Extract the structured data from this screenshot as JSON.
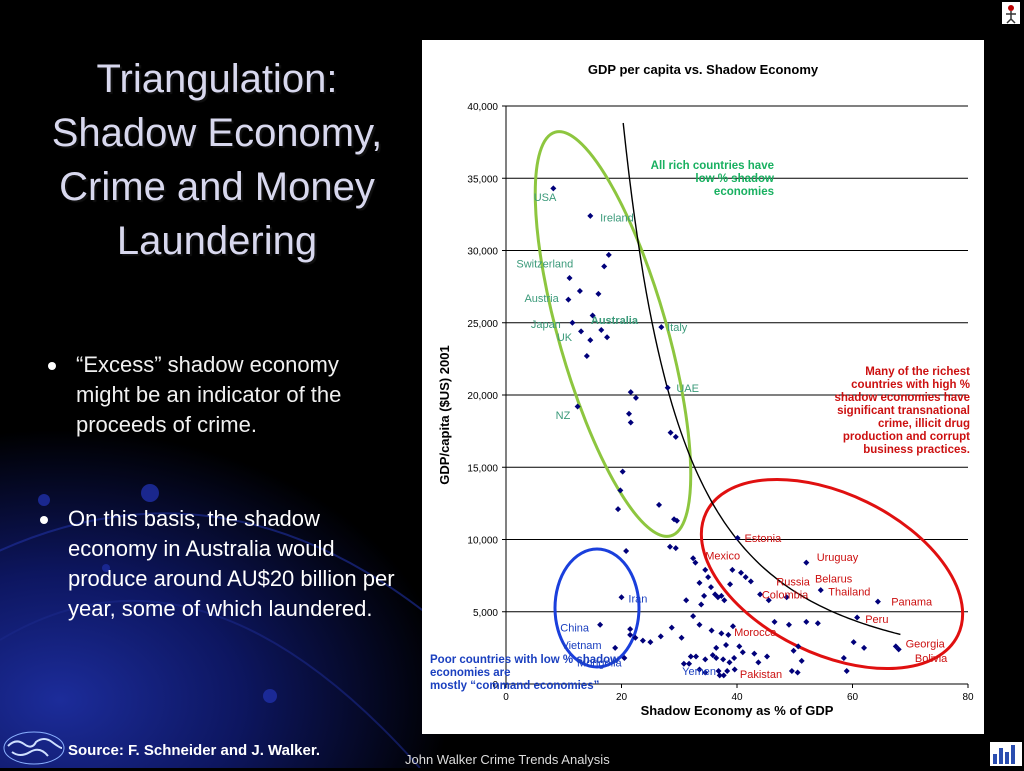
{
  "slide": {
    "title": [
      "Triangulation:",
      "Shadow Economy,",
      "Crime and Money",
      "Laundering"
    ],
    "bullets": [
      "“Excess” shadow economy might be an indicator of the proceeds of crime.",
      "On this basis, the shadow economy in Australia would produce around AU$20 billion per year, some of which laundered."
    ],
    "source": "Source: F. Schneider and J. Walker.",
    "credit": "John Walker Crime Trends Analysis"
  },
  "chart_data": {
    "type": "scatter",
    "title": "GDP per capita vs. Shadow Economy",
    "xlabel": "Shadow Economy as % of GDP",
    "ylabel": "GDP/capita ($US) 2001",
    "xlim": [
      0,
      80
    ],
    "ylim": [
      0,
      40000
    ],
    "x_ticks": [
      "0",
      "20",
      "40",
      "60",
      "80"
    ],
    "y_ticks": [
      "0",
      "5,000",
      "10,000",
      "15,000",
      "20,000",
      "25,000",
      "30,000",
      "35,000",
      "40,000"
    ],
    "grid": "horizontal",
    "point_color": "#00007a",
    "points": [
      [
        8.2,
        34300
      ],
      [
        14.6,
        32400
      ],
      [
        17.8,
        29700
      ],
      [
        17,
        28900
      ],
      [
        11,
        28100
      ],
      [
        12.8,
        27200
      ],
      [
        16,
        27000
      ],
      [
        10.8,
        26600
      ],
      [
        11.5,
        25000
      ],
      [
        15,
        25500
      ],
      [
        13,
        24400
      ],
      [
        16.5,
        24500
      ],
      [
        17.5,
        24000
      ],
      [
        14.6,
        23800
      ],
      [
        14,
        22700
      ],
      [
        26.9,
        24700
      ],
      [
        28,
        20500
      ],
      [
        21.6,
        20200
      ],
      [
        22.5,
        19800
      ],
      [
        21.3,
        18700
      ],
      [
        21.6,
        18100
      ],
      [
        28.5,
        17400
      ],
      [
        29.4,
        17100
      ],
      [
        12.4,
        19200
      ],
      [
        20.2,
        14700
      ],
      [
        19.8,
        13400
      ],
      [
        19.4,
        12100
      ],
      [
        26.5,
        12400
      ],
      [
        29.1,
        11400
      ],
      [
        29.6,
        11300
      ],
      [
        28.4,
        9500
      ],
      [
        29.4,
        9400
      ],
      [
        20.8,
        9200
      ],
      [
        40.1,
        10100
      ],
      [
        32.4,
        8700
      ],
      [
        32.8,
        8400
      ],
      [
        34.5,
        7900
      ],
      [
        35,
        7400
      ],
      [
        33.5,
        7000
      ],
      [
        35.5,
        6700
      ],
      [
        34.3,
        6100
      ],
      [
        36.2,
        6200
      ],
      [
        37.3,
        6100
      ],
      [
        36.7,
        6000
      ],
      [
        37.8,
        5800
      ],
      [
        31.2,
        5800
      ],
      [
        33.8,
        5500
      ],
      [
        38.8,
        6900
      ],
      [
        39.2,
        7900
      ],
      [
        40.7,
        7700
      ],
      [
        41.5,
        7400
      ],
      [
        42.4,
        7100
      ],
      [
        44,
        6200
      ],
      [
        45.5,
        5800
      ],
      [
        48.6,
        6000
      ],
      [
        52,
        8400
      ],
      [
        54.5,
        6500
      ],
      [
        32.4,
        4700
      ],
      [
        33.5,
        4100
      ],
      [
        35.6,
        3700
      ],
      [
        37.3,
        3500
      ],
      [
        38.5,
        3400
      ],
      [
        39.3,
        4000
      ],
      [
        38.1,
        2700
      ],
      [
        36.4,
        2500
      ],
      [
        40.4,
        2600
      ],
      [
        41,
        2200
      ],
      [
        43,
        2100
      ],
      [
        32.9,
        1900
      ],
      [
        34.5,
        1700
      ],
      [
        35.8,
        2000
      ],
      [
        36.4,
        1800
      ],
      [
        37.6,
        1700
      ],
      [
        38.7,
        1500
      ],
      [
        39.5,
        1800
      ],
      [
        31.7,
        1400
      ],
      [
        33.5,
        1000
      ],
      [
        34.5,
        800
      ],
      [
        37,
        600
      ],
      [
        38.3,
        900
      ],
      [
        39.6,
        1000
      ],
      [
        43.7,
        1500
      ],
      [
        45.2,
        1900
      ],
      [
        49.8,
        2300
      ],
      [
        50.6,
        2600
      ],
      [
        51.2,
        1600
      ],
      [
        49.5,
        900
      ],
      [
        50.5,
        800
      ],
      [
        46.5,
        4300
      ],
      [
        49,
        4100
      ],
      [
        52,
        4300
      ],
      [
        54,
        4200
      ],
      [
        58.5,
        1800
      ],
      [
        59,
        900
      ],
      [
        60.2,
        2900
      ],
      [
        60.8,
        4600
      ],
      [
        62,
        2500
      ],
      [
        64.4,
        5700
      ],
      [
        67.5,
        2600
      ],
      [
        68,
        2400
      ],
      [
        20,
        6000
      ],
      [
        21.5,
        3800
      ],
      [
        21.5,
        3400
      ],
      [
        22.4,
        3200
      ],
      [
        23.7,
        3000
      ],
      [
        25,
        2900
      ],
      [
        26.8,
        3300
      ],
      [
        20.5,
        1800
      ],
      [
        28.7,
        3900
      ],
      [
        30.8,
        1400
      ],
      [
        32,
        1900
      ],
      [
        30.4,
        3200
      ],
      [
        36.8,
        900
      ],
      [
        37.7,
        600
      ],
      [
        16.3,
        4100
      ],
      [
        18.9,
        2500
      ]
    ],
    "point_labels": [
      {
        "text": "USA",
        "x": 4.8,
        "y": 33700,
        "color": "#3b9a7a"
      },
      {
        "text": "Ireland",
        "x": 16.3,
        "y": 32300,
        "color": "#3b9a7a"
      },
      {
        "text": "Switzerland",
        "x": 1.8,
        "y": 29100,
        "color": "#3b9a7a"
      },
      {
        "text": "Austria",
        "x": 3.2,
        "y": 26700,
        "color": "#3b9a7a"
      },
      {
        "text": "Japan",
        "x": 4.3,
        "y": 24900,
        "color": "#3b9a7a"
      },
      {
        "text": "UK",
        "x": 8.8,
        "y": 24000,
        "color": "#3b9a7a"
      },
      {
        "text": "Australia",
        "x": 14.7,
        "y": 25200,
        "color": "#3b9a7a",
        "bold": true
      },
      {
        "text": "Italy",
        "x": 27.9,
        "y": 24700,
        "color": "#3b9a7a"
      },
      {
        "text": "UAE",
        "x": 29.5,
        "y": 20500,
        "color": "#3b9a7a"
      },
      {
        "text": "NZ",
        "x": 8.6,
        "y": 18600,
        "color": "#3b9a7a"
      },
      {
        "text": "Estonia",
        "x": 41.3,
        "y": 10100,
        "color": "#cc1010"
      },
      {
        "text": "Mexico",
        "x": 34.5,
        "y": 8900,
        "color": "#cc1010"
      },
      {
        "text": "Uruguay",
        "x": 53.8,
        "y": 8800,
        "color": "#cc1010"
      },
      {
        "text": "Belarus",
        "x": 53.5,
        "y": 7300,
        "color": "#cc1010"
      },
      {
        "text": "Russia",
        "x": 46.8,
        "y": 7100,
        "color": "#cc1010"
      },
      {
        "text": "Thailand",
        "x": 55.8,
        "y": 6400,
        "color": "#cc1010"
      },
      {
        "text": "Colombia",
        "x": 44.3,
        "y": 6200,
        "color": "#cc1010"
      },
      {
        "text": "Panama",
        "x": 66.7,
        "y": 5700,
        "color": "#cc1010"
      },
      {
        "text": "Peru",
        "x": 62.2,
        "y": 4500,
        "color": "#cc1010"
      },
      {
        "text": "Morocco",
        "x": 39.5,
        "y": 3600,
        "color": "#cc1010"
      },
      {
        "text": "Georgia",
        "x": 69.2,
        "y": 2800,
        "color": "#cc1010"
      },
      {
        "text": "Bolivia",
        "x": 70.8,
        "y": 1800,
        "color": "#cc1010"
      },
      {
        "text": "Pakistan",
        "x": 40.5,
        "y": 700,
        "color": "#cc1010"
      },
      {
        "text": "Iran",
        "x": 21.2,
        "y": 5900,
        "color": "#1a3fbf"
      },
      {
        "text": "China",
        "x": 9.4,
        "y": 3900,
        "color": "#1a3fbf"
      },
      {
        "text": "Vietnam",
        "x": 9.6,
        "y": 2700,
        "color": "#1a3fbf"
      },
      {
        "text": "Mongolia",
        "x": 12.3,
        "y": 1500,
        "color": "#1a3fbf"
      },
      {
        "text": "Yemen",
        "x": 30.5,
        "y": 900,
        "color": "#1a3fbf"
      }
    ],
    "annotations": [
      {
        "text": [
          "All rich countries have",
          "low % shadow",
          "economies"
        ],
        "color": "#18b060"
      },
      {
        "text": [
          "Many of the richest",
          "countries with high %",
          "shadow economies have",
          "significant  transnational",
          "crime, illicit drug",
          "production and corrupt",
          "business practices."
        ],
        "color": "#cc1010"
      },
      {
        "text": [
          "Poor countries with low % shadow",
          "economies are",
          "mostly “command economies”"
        ],
        "color": "#1a3fbf"
      }
    ]
  }
}
